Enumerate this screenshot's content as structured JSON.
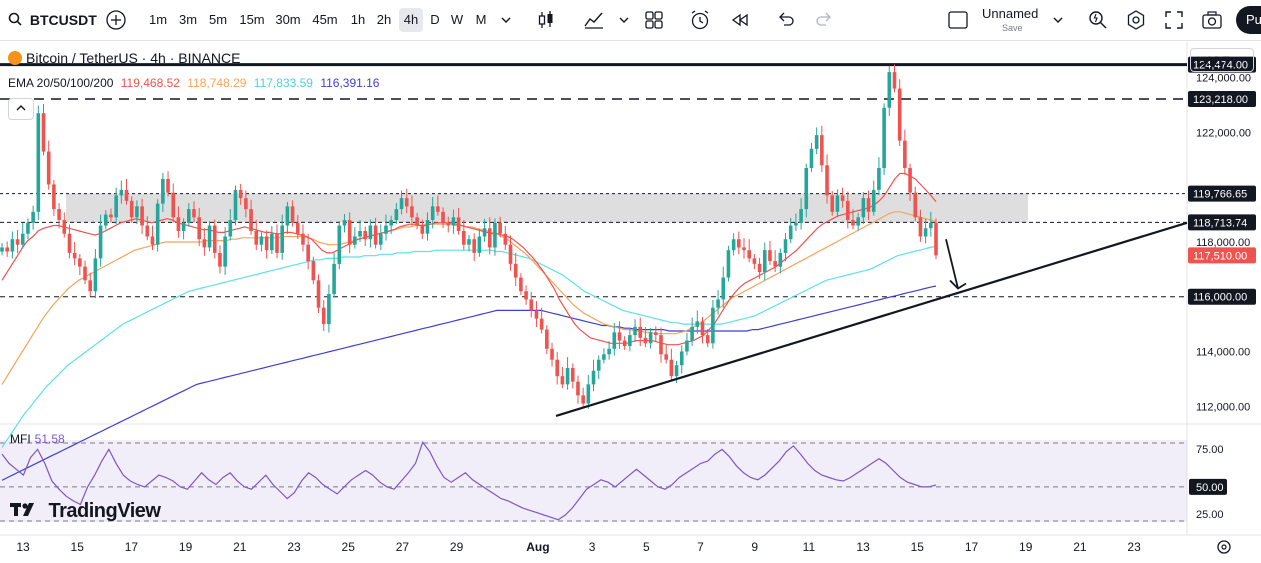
{
  "toolbar": {
    "symbol": "BTCUSDT",
    "intervals": [
      "1m",
      "3m",
      "5m",
      "15m",
      "30m",
      "45m",
      "1h",
      "2h",
      "4h",
      "D",
      "W",
      "M"
    ],
    "active_interval": "4h",
    "layout_name": "Unnamed",
    "layout_save": "Save",
    "publish_label": "Pu"
  },
  "legend": {
    "title": "Bitcoin / TetherUS · 4h · BINANCE",
    "ema_label": "EMA 20/50/100/200",
    "ema_values": [
      "119,468.52",
      "118,748.29",
      "117,833.59",
      "116,391.16"
    ],
    "currency": "USDT"
  },
  "mfi": {
    "label": "MFI",
    "value": "51.58"
  },
  "watermark": "TradingView",
  "colors": {
    "up": "#26a69a",
    "down": "#ef5350",
    "ema20": "#ef5350",
    "ema50": "#f7a35c",
    "ema100": "#5ce1e6",
    "ema200": "#3f3fd4",
    "mfi": "#7e57c2"
  },
  "chart_data": {
    "type": "candlestick",
    "price_axis": {
      "ticks": [
        112000,
        114000,
        116000,
        118000,
        122000,
        124000
      ],
      "tick_labels": [
        "112,000.00",
        "114,000.00",
        "116,000.00",
        "118,000.00",
        "122,000.00",
        "124,000.00"
      ],
      "range": [
        111500,
        125300
      ]
    },
    "time_axis": {
      "labels": [
        "13",
        "15",
        "17",
        "19",
        "21",
        "23",
        "25",
        "27",
        "29",
        "Aug",
        "3",
        "5",
        "7",
        "9",
        "11",
        "13",
        "15",
        "17",
        "19",
        "21",
        "23"
      ]
    },
    "price_tags": [
      {
        "value": 124474,
        "label": "124,474.00",
        "color": "#131722"
      },
      {
        "value": 123218,
        "label": "123,218.00",
        "color": "#131722"
      },
      {
        "value": 119766.65,
        "label": "119,766.65",
        "color": "#131722"
      },
      {
        "value": 118713.74,
        "label": "118,713.74",
        "color": "#131722"
      },
      {
        "value": 117510,
        "label": "117,510.00",
        "color": "#ef5350"
      },
      {
        "value": 116000,
        "label": "116,000.00",
        "color": "#131722"
      }
    ],
    "horizontal_lines": [
      {
        "value": 124474,
        "style": "solid"
      },
      {
        "value": 123218,
        "style": "dashed"
      },
      {
        "value": 119766.65,
        "style": "dotted"
      },
      {
        "value": 118713.74,
        "style": "dashed"
      },
      {
        "value": 116000,
        "style": "dashed"
      }
    ],
    "zone": {
      "from": 118713.74,
      "to": 119766.65
    },
    "trendline": {
      "from": {
        "date": "Aug 2",
        "price": 111650
      },
      "to": {
        "date": "Aug 20",
        "price": 118700
      }
    },
    "closes": [
      117800,
      117650,
      118100,
      117900,
      118300,
      118700,
      119100,
      122700,
      121300,
      120100,
      119200,
      118800,
      118300,
      117600,
      117400,
      117100,
      116600,
      116200,
      117400,
      118600,
      119000,
      118900,
      119700,
      119900,
      119500,
      118900,
      119300,
      118600,
      118200,
      117900,
      119400,
      120300,
      119800,
      118900,
      118400,
      118700,
      119200,
      118900,
      118100,
      117800,
      118600,
      117600,
      117100,
      118200,
      118800,
      119900,
      119600,
      119200,
      118400,
      117900,
      118200,
      117700,
      118300,
      117600,
      118600,
      119300,
      118700,
      118300,
      117900,
      117300,
      116600,
      115600,
      115000,
      116100,
      117200,
      118600,
      118800,
      117900,
      118200,
      118400,
      118100,
      118600,
      117900,
      118300,
      118600,
      118800,
      119200,
      119600,
      119300,
      118900,
      118600,
      118300,
      118800,
      119300,
      119100,
      118700,
      118600,
      118900,
      118400,
      117900,
      118100,
      117600,
      118200,
      118500,
      117800,
      118700,
      118300,
      117900,
      117200,
      116700,
      116200,
      115900,
      115500,
      115200,
      114800,
      114100,
      113700,
      113100,
      112800,
      113400,
      112900,
      112400,
      112100,
      112800,
      113300,
      113700,
      113900,
      114100,
      114700,
      114400,
      114200,
      114600,
      114900,
      114500,
      114300,
      114700,
      114600,
      113900,
      113700,
      113100,
      113500,
      114000,
      114400,
      114900,
      115100,
      114600,
      114300,
      115600,
      115900,
      116700,
      117700,
      118100,
      117800,
      117700,
      117400,
      117200,
      116900,
      117700,
      117300,
      117100,
      117600,
      118100,
      118600,
      118700,
      119200,
      120700,
      121400,
      121900,
      120800,
      119700,
      119100,
      119700,
      119500,
      118800,
      118600,
      118900,
      119600,
      119100,
      119900,
      120700,
      122900,
      124200,
      123600,
      121700,
      120700,
      119800,
      118900,
      118200,
      118500,
      118700,
      117510
    ],
    "ema20": [
      116600,
      116900,
      117200,
      117500,
      117800,
      118050,
      118200,
      118400,
      118500,
      118550,
      118600,
      118600,
      118550,
      118500,
      118450,
      118400,
      118350,
      118300,
      118250,
      118300,
      118400,
      118500,
      118600,
      118700,
      118750,
      118800,
      118850,
      118800,
      118750,
      118700,
      118750,
      118800,
      118850,
      118800,
      118700,
      118650,
      118600,
      118550,
      118500,
      118450,
      118450,
      118400,
      118350,
      118350,
      118400,
      118450,
      118500,
      118550,
      118500,
      118450,
      118400,
      118350,
      118350,
      118300,
      118300,
      118350,
      118350,
      118300,
      118250,
      118200,
      118100,
      117900,
      117700,
      117600,
      117600,
      117700,
      117800,
      117900,
      118000,
      118100,
      118150,
      118200,
      118250,
      118300,
      118350,
      118400,
      118450,
      118550,
      118600,
      118650,
      118650,
      118600,
      118600,
      118650,
      118700,
      118700,
      118700,
      118700,
      118650,
      118600,
      118550,
      118500,
      118450,
      118400,
      118350,
      118300,
      118300,
      118250,
      118200,
      118100,
      117950,
      117800,
      117600,
      117400,
      117150,
      116900,
      116600,
      116300,
      115900,
      115600,
      115300,
      115000,
      114800,
      114650,
      114500,
      114450,
      114400,
      114350,
      114300,
      114300,
      114300,
      114300,
      114350,
      114400,
      114400,
      114400,
      114400,
      114350,
      114300,
      114250,
      114250,
      114250,
      114300,
      114350,
      114400,
      114500,
      114600,
      114800,
      115000,
      115300,
      115600,
      115900,
      116150,
      116350,
      116500,
      116600,
      116700,
      116800,
      116900,
      117000,
      117100,
      117250,
      117400,
      117550,
      117700,
      117900,
      118100,
      118300,
      118500,
      118650,
      118750,
      118850,
      118950,
      119000,
      119050,
      119100,
      119150,
      119200,
      119250,
      119350,
      119500,
      119700,
      120000,
      120300,
      120500,
      120500,
      120400,
      120300,
      120100,
      119900,
      119700,
      119468.52
    ],
    "ema50": [
      112800,
      113100,
      113400,
      113700,
      114000,
      114300,
      114600,
      114900,
      115200,
      115450,
      115700,
      115900,
      116100,
      116300,
      116450,
      116600,
      116700,
      116800,
      116900,
      117000,
      117100,
      117200,
      117300,
      117400,
      117500,
      117600,
      117700,
      117750,
      117800,
      117850,
      117900,
      117950,
      118000,
      118000,
      118000,
      118000,
      118000,
      118000,
      118000,
      118000,
      118050,
      118050,
      118050,
      118050,
      118050,
      118100,
      118100,
      118150,
      118150,
      118150,
      118150,
      118150,
      118150,
      118150,
      118150,
      118200,
      118200,
      118200,
      118200,
      118200,
      118150,
      118100,
      118000,
      117950,
      117900,
      117900,
      117900,
      117950,
      118000,
      118050,
      118100,
      118150,
      118200,
      118250,
      118300,
      118350,
      118400,
      118450,
      118500,
      118550,
      118550,
      118600,
      118600,
      118650,
      118650,
      118650,
      118650,
      118650,
      118650,
      118600,
      118600,
      118550,
      118550,
      118500,
      118450,
      118400,
      118350,
      118300,
      118200,
      118100,
      117950,
      117800,
      117650,
      117500,
      117300,
      117100,
      116900,
      116700,
      116500,
      116300,
      116100,
      115900,
      115700,
      115550,
      115400,
      115300,
      115200,
      115100,
      115000,
      114950,
      114900,
      114850,
      114800,
      114800,
      114750,
      114750,
      114700,
      114700,
      114650,
      114650,
      114650,
      114650,
      114650,
      114700,
      114750,
      114850,
      114950,
      115050,
      115200,
      115350,
      115500,
      115650,
      115800,
      115950,
      116050,
      116150,
      116250,
      116350,
      116450,
      116550,
      116650,
      116750,
      116850,
      116950,
      117050,
      117150,
      117250,
      117350,
      117450,
      117550,
      117650,
      117750,
      117850,
      117950,
      118050,
      118150,
      118250,
      118350,
      118450,
      118550,
      118650,
      118750,
      118850,
      118950,
      119050,
      119100,
      119100,
      119050,
      119000,
      118950,
      118900,
      118850,
      118800,
      118748.29
    ],
    "ema100": [
      110500,
      110800,
      111100,
      111400,
      111700,
      111950,
      112200,
      112450,
      112700,
      112900,
      113100,
      113300,
      113500,
      113650,
      113800,
      113950,
      114100,
      114250,
      114400,
      114550,
      114700,
      114850,
      115000,
      115100,
      115200,
      115300,
      115400,
      115500,
      115600,
      115700,
      115800,
      115900,
      116000,
      116100,
      116200,
      116250,
      116300,
      116350,
      116400,
      116450,
      116500,
      116550,
      116600,
      116650,
      116700,
      116750,
      116800,
      116850,
      116900,
      116950,
      117000,
      117050,
      117100,
      117150,
      117200,
      117250,
      117300,
      117350,
      117350,
      117400,
      117400,
      117400,
      117450,
      117450,
      117450,
      117450,
      117500,
      117500,
      117500,
      117550,
      117550,
      117550,
      117600,
      117600,
      117600,
      117650,
      117650,
      117650,
      117650,
      117700,
      117700,
      117700,
      117700,
      117700,
      117700,
      117700,
      117700,
      117700,
      117700,
      117700,
      117650,
      117650,
      117600,
      117550,
      117500,
      117450,
      117400,
      117300,
      117200,
      117100,
      117000,
      116900,
      116800,
      116650,
      116500,
      116350,
      116200,
      116100,
      116000,
      115900,
      115800,
      115700,
      115600,
      115500,
      115450,
      115400,
      115350,
      115300,
      115250,
      115200,
      115150,
      115100,
      115050,
      115050,
      115000,
      115000,
      115000,
      115000,
      115000,
      115000,
      115000,
      115000,
      115050,
      115100,
      115150,
      115200,
      115250,
      115300,
      115400,
      115500,
      115600,
      115700,
      115800,
      115900,
      116000,
      116100,
      116200,
      116300,
      116400,
      116500,
      116600,
      116650,
      116700,
      116750,
      116800,
      116850,
      116900,
      116950,
      117000,
      117100,
      117200,
      117300,
      117400,
      117500,
      117550,
      117600,
      117650,
      117700,
      117750,
      117800,
      117833.59
    ],
    "ema200": [
      109300,
      109400,
      109500,
      109600,
      109700,
      109800,
      109900,
      110000,
      110100,
      110200,
      110300,
      110400,
      110500,
      110600,
      110700,
      110800,
      110900,
      111000,
      111100,
      111200,
      111300,
      111400,
      111500,
      111600,
      111700,
      111800,
      111900,
      112000,
      112100,
      112200,
      112300,
      112400,
      112500,
      112600,
      112700,
      112800,
      112850,
      112900,
      112950,
      113000,
      113050,
      113100,
      113150,
      113200,
      113250,
      113300,
      113350,
      113400,
      113450,
      113500,
      113550,
      113600,
      113650,
      113700,
      113750,
      113800,
      113850,
      113900,
      113950,
      114000,
      114050,
      114100,
      114150,
      114200,
      114250,
      114300,
      114350,
      114400,
      114450,
      114500,
      114550,
      114600,
      114650,
      114700,
      114750,
      114800,
      114850,
      114900,
      114950,
      115000,
      115050,
      115100,
      115150,
      115200,
      115250,
      115300,
      115350,
      115400,
      115450,
      115500,
      115500,
      115500,
      115500,
      115500,
      115500,
      115500,
      115500,
      115500,
      115450,
      115400,
      115350,
      115300,
      115250,
      115200,
      115150,
      115100,
      115050,
      115000,
      114950,
      114950,
      114900,
      114900,
      114850,
      114850,
      114800,
      114800,
      114800,
      114800,
      114800,
      114800,
      114750,
      114750,
      114750,
      114750,
      114750,
      114750,
      114750,
      114750,
      114750,
      114750,
      114750,
      114750,
      114750,
      114750,
      114750,
      114800,
      114800,
      114850,
      114900,
      114950,
      115000,
      115050,
      115100,
      115150,
      115200,
      115250,
      115300,
      115350,
      115400,
      115450,
      115500,
      115550,
      115600,
      115650,
      115700,
      115750,
      115800,
      115850,
      115900,
      115950,
      116000,
      116050,
      116100,
      116150,
      116200,
      116250,
      116300,
      116350,
      116391.16
    ],
    "mfi_axis": {
      "ticks": [
        25,
        50,
        75
      ],
      "labels": [
        "25.00",
        "50.00",
        "75.00"
      ],
      "range": [
        20,
        90
      ]
    },
    "mfi_values": [
      78,
      70,
      65,
      60,
      75,
      82,
      70,
      55,
      48,
      42,
      38,
      35,
      50,
      60,
      72,
      82,
      70,
      60,
      55,
      52,
      50,
      55,
      60,
      58,
      55,
      50,
      48,
      55,
      62,
      56,
      52,
      58,
      62,
      55,
      50,
      48,
      54,
      60,
      52,
      46,
      40,
      45,
      55,
      62,
      58,
      52,
      48,
      44,
      50,
      56,
      60,
      64,
      60,
      54,
      50,
      48,
      55,
      62,
      70,
      88,
      80,
      68,
      58,
      54,
      58,
      62,
      56,
      52,
      48,
      44,
      40,
      38,
      35,
      32,
      30,
      28,
      26,
      24,
      22,
      26,
      32,
      40,
      48,
      52,
      56,
      54,
      50,
      55,
      60,
      65,
      60,
      55,
      50,
      48,
      52,
      58,
      62,
      66,
      70,
      72,
      78,
      82,
      76,
      68,
      62,
      58,
      56,
      60,
      66,
      72,
      80,
      85,
      78,
      70,
      64,
      60,
      58,
      56,
      55,
      58,
      62,
      66,
      70,
      74,
      70,
      64,
      58,
      54,
      52,
      50,
      50,
      51.58
    ]
  }
}
